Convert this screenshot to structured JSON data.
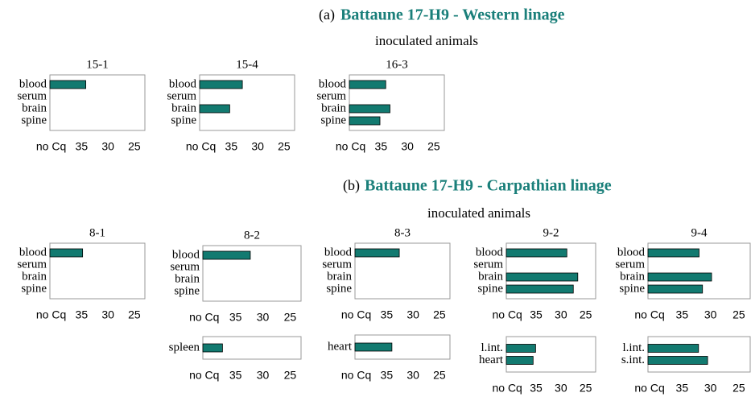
{
  "figure": {
    "sections": [
      {
        "label": "(a)",
        "title": "Battaune 17-H9 - Western linage",
        "subtitle": "inoculated animals"
      },
      {
        "label": "(b)",
        "title": "Battaune 17-H9 - Carpathian linage",
        "subtitle": "inoculated animals"
      }
    ]
  },
  "chart_data": [
    {
      "type": "bar",
      "orientation": "horizontal",
      "title": "15-1",
      "categories": [
        "blood",
        "serum",
        "brain",
        "spine"
      ],
      "values": [
        34.2,
        null,
        null,
        null
      ],
      "color": "#127a70",
      "xlim": [
        41,
        23
      ],
      "xticks": [
        {
          "value": 40,
          "label": "no Cq"
        },
        35,
        30,
        25
      ]
    },
    {
      "type": "bar",
      "orientation": "horizontal",
      "title": "15-4",
      "categories": [
        "blood",
        "serum",
        "brain",
        "spine"
      ],
      "values": [
        32.9,
        null,
        35.3,
        null
      ],
      "color": "#127a70",
      "xlim": [
        41,
        23
      ],
      "xticks": [
        {
          "value": 40,
          "label": "no Cq"
        },
        35,
        30,
        25
      ]
    },
    {
      "type": "bar",
      "orientation": "horizontal",
      "title": "16-3",
      "categories": [
        "blood",
        "serum",
        "brain",
        "spine"
      ],
      "values": [
        34.1,
        null,
        33.3,
        35.2
      ],
      "color": "#127a70",
      "xlim": [
        41,
        23
      ],
      "xticks": [
        {
          "value": 40,
          "label": "no Cq"
        },
        35,
        30,
        25
      ]
    },
    {
      "type": "bar",
      "orientation": "horizontal",
      "title": "8-1",
      "categories": [
        "blood",
        "serum",
        "brain",
        "spine"
      ],
      "values": [
        34.8,
        null,
        null,
        null
      ],
      "color": "#127a70",
      "xlim": [
        41,
        23
      ],
      "xticks": [
        {
          "value": 40,
          "label": "no Cq"
        },
        35,
        30,
        25
      ]
    },
    {
      "type": "bar",
      "orientation": "horizontal",
      "title": "8-2",
      "categories": [
        "blood",
        "serum",
        "brain",
        "spine"
      ],
      "values": [
        32.3,
        null,
        null,
        null
      ],
      "color": "#127a70",
      "xlim": [
        41,
        23
      ],
      "xticks": [
        {
          "value": 40,
          "label": "no Cq"
        },
        35,
        30,
        25
      ]
    },
    {
      "type": "bar",
      "orientation": "horizontal",
      "title": "8-3",
      "categories": [
        "blood",
        "serum",
        "brain",
        "spine"
      ],
      "values": [
        32.6,
        null,
        null,
        null
      ],
      "color": "#127a70",
      "xlim": [
        41,
        23
      ],
      "xticks": [
        {
          "value": 40,
          "label": "no Cq"
        },
        35,
        30,
        25
      ]
    },
    {
      "type": "bar",
      "orientation": "horizontal",
      "title": "9-2",
      "categories": [
        "blood",
        "serum",
        "brain",
        "spine"
      ],
      "values": [
        28.8,
        null,
        26.6,
        27.5
      ],
      "color": "#127a70",
      "xlim": [
        41,
        23
      ],
      "xticks": [
        {
          "value": 40,
          "label": "no Cq"
        },
        35,
        30,
        25
      ]
    },
    {
      "type": "bar",
      "orientation": "horizontal",
      "title": "9-4",
      "categories": [
        "blood",
        "serum",
        "brain",
        "spine"
      ],
      "values": [
        32,
        null,
        29.8,
        31.4
      ],
      "color": "#127a70",
      "xlim": [
        41,
        23
      ],
      "xticks": [
        {
          "value": 40,
          "label": "no Cq"
        },
        35,
        30,
        25
      ]
    },
    {
      "type": "bar",
      "orientation": "horizontal",
      "categories": [
        "spleen"
      ],
      "values": [
        37.4
      ],
      "color": "#127a70",
      "xlim": [
        41,
        23
      ],
      "xticks": [
        {
          "value": 40,
          "label": "no Cq"
        },
        35,
        30,
        25
      ]
    },
    {
      "type": "bar",
      "orientation": "horizontal",
      "categories": [
        "heart"
      ],
      "values": [
        34
      ],
      "color": "#127a70",
      "xlim": [
        41,
        23
      ],
      "xticks": [
        {
          "value": 40,
          "label": "no Cq"
        },
        35,
        30,
        25
      ]
    },
    {
      "type": "bar",
      "orientation": "horizontal",
      "categories": [
        "l.int.",
        "heart"
      ],
      "values": [
        35.1,
        35.6
      ],
      "color": "#127a70",
      "xlim": [
        41,
        23
      ],
      "xticks": [
        {
          "value": 40,
          "label": "no Cq"
        },
        35,
        30,
        25
      ]
    },
    {
      "type": "bar",
      "orientation": "horizontal",
      "categories": [
        "l.int.",
        "s.int."
      ],
      "values": [
        32.1,
        30.5
      ],
      "color": "#127a70",
      "xlim": [
        41,
        23
      ],
      "xticks": [
        {
          "value": 40,
          "label": "no Cq"
        },
        35,
        30,
        25
      ]
    }
  ]
}
